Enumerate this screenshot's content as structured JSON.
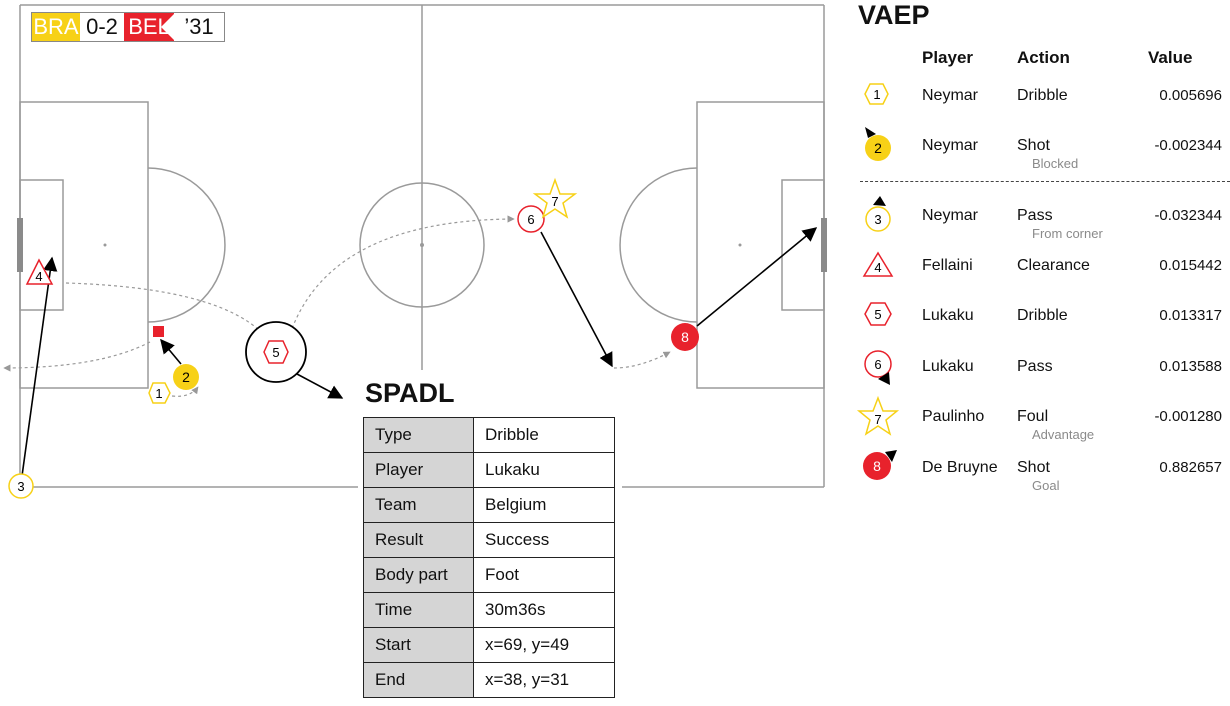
{
  "scoreboard": {
    "home": "BRA",
    "score": "0-2",
    "away": "BEL",
    "time": "’31"
  },
  "colors": {
    "brazil": "#f7d117",
    "belgium": "#e8222c",
    "pitch_line": "#9a9a9a"
  },
  "pitch": {
    "events": [
      {
        "n": "1",
        "team": "BRA",
        "shape": "hexagon",
        "style": "outline"
      },
      {
        "n": "2",
        "team": "BRA",
        "shape": "circle",
        "style": "filled"
      },
      {
        "n": "3",
        "team": "BRA",
        "shape": "circle",
        "style": "outline"
      },
      {
        "n": "4",
        "team": "BEL",
        "shape": "triangle",
        "style": "outline"
      },
      {
        "n": "5",
        "team": "BEL",
        "shape": "hexagon",
        "style": "outline"
      },
      {
        "n": "6",
        "team": "BEL",
        "shape": "circle",
        "style": "outline"
      },
      {
        "n": "7",
        "team": "BRA",
        "shape": "star",
        "style": "outline"
      },
      {
        "n": "8",
        "team": "BEL",
        "shape": "circle",
        "style": "filled"
      }
    ]
  },
  "vaep": {
    "title": "VAEP",
    "headers": {
      "player": "Player",
      "action": "Action",
      "value": "Value"
    },
    "rows": [
      {
        "n": "1",
        "player": "Neymar",
        "action": "Dribble",
        "sub": "",
        "value": "0.005696"
      },
      {
        "n": "2",
        "player": "Neymar",
        "action": "Shot",
        "sub": "Blocked",
        "value": "-0.002344"
      },
      {
        "n": "3",
        "player": "Neymar",
        "action": "Pass",
        "sub": "From corner",
        "value": "-0.032344"
      },
      {
        "n": "4",
        "player": "Fellaini",
        "action": "Clearance",
        "sub": "",
        "value": "0.015442"
      },
      {
        "n": "5",
        "player": "Lukaku",
        "action": "Dribble",
        "sub": "",
        "value": "0.013317"
      },
      {
        "n": "6",
        "player": "Lukaku",
        "action": "Pass",
        "sub": "",
        "value": "0.013588"
      },
      {
        "n": "7",
        "player": "Paulinho",
        "action": "Foul",
        "sub": "Advantage",
        "value": "-0.001280"
      },
      {
        "n": "8",
        "player": "De Bruyne",
        "action": "Shot",
        "sub": "Goal",
        "value": "0.882657"
      }
    ]
  },
  "spadl": {
    "title": "SPADL",
    "rows": [
      {
        "key": "Type",
        "value": "Dribble"
      },
      {
        "key": "Player",
        "value": "Lukaku"
      },
      {
        "key": "Team",
        "value": "Belgium"
      },
      {
        "key": "Result",
        "value": "Success"
      },
      {
        "key": "Body part",
        "value": "Foot"
      },
      {
        "key": "Time",
        "value": "30m36s"
      },
      {
        "key": "Start",
        "value": "x=69, y=49"
      },
      {
        "key": "End",
        "value": "x=38, y=31"
      }
    ]
  }
}
